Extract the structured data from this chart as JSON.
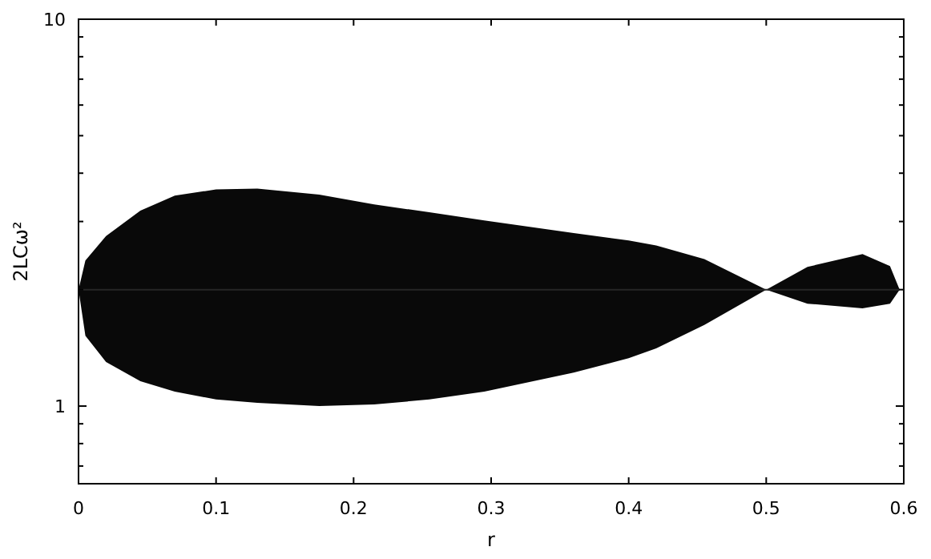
{
  "chart_data": {
    "type": "line",
    "xlabel": "r",
    "ylabel": "2LCω²",
    "log": "y",
    "xlim": [
      0,
      0.6
    ],
    "ylim": [
      0.63,
      10
    ],
    "xticks": [
      0,
      0.1,
      0.2,
      0.3,
      0.4,
      0.5,
      0.6
    ],
    "yticks": [
      {
        "value": 0.7,
        "label": null
      },
      {
        "value": 0.8,
        "label": null
      },
      {
        "value": 0.9,
        "label": null
      },
      1,
      {
        "value": 2,
        "label": null
      },
      {
        "value": 3,
        "label": null
      },
      {
        "value": 4,
        "label": null
      },
      {
        "value": 5,
        "label": null
      },
      {
        "value": 6,
        "label": null
      },
      {
        "value": 7,
        "label": null
      },
      {
        "value": 8,
        "label": null
      },
      {
        "value": 9,
        "label": null
      },
      10
    ],
    "line_style": "solid",
    "series": [
      {
        "color": "#262626",
        "x": [
          0,
          0.005,
          0.02,
          0.045,
          0.07,
          0.1,
          0.13,
          0.175,
          0.215,
          0.255,
          0.295,
          0.36,
          0.4,
          0.42,
          0.455,
          0.5,
          0.53,
          0.57,
          0.59,
          0.597
        ],
        "values": [
          2,
          2,
          2,
          2,
          2,
          2,
          2,
          2,
          2,
          2,
          2,
          2,
          2,
          2,
          2,
          2,
          2,
          2,
          2,
          2
        ],
        "upper": [
          2,
          2.38,
          2.75,
          3.2,
          3.5,
          3.63,
          3.65,
          3.52,
          3.32,
          3.17,
          3.02,
          2.8,
          2.68,
          2.6,
          2.4,
          2,
          2.29,
          2.47,
          2.3,
          2
        ],
        "lower": [
          2,
          1.52,
          1.3,
          1.16,
          1.09,
          1.04,
          1.02,
          1.0,
          1.01,
          1.04,
          1.09,
          1.22,
          1.33,
          1.41,
          1.62,
          2,
          1.84,
          1.79,
          1.84,
          2
        ]
      }
    ]
  }
}
